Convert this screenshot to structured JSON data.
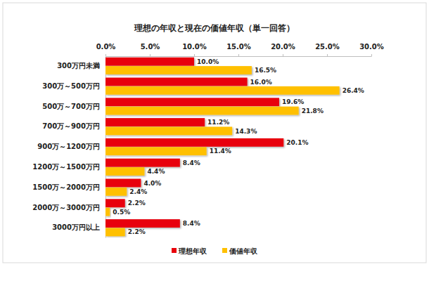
{
  "chart_data": {
    "type": "bar",
    "orientation": "horizontal",
    "title": "理想の年収と現在の価値年収（単一回答）",
    "categories": [
      "300万円未満",
      "300万～500万円",
      "500万～700万円",
      "700万～900万円",
      "900万～1200万円",
      "1200万～1500万円",
      "1500万～2000万円",
      "2000万～3000万円",
      "3000万円以上"
    ],
    "series": [
      {
        "name": "理想年収",
        "color": "#e8000b",
        "values": [
          10.0,
          16.0,
          19.6,
          11.2,
          20.1,
          8.4,
          4.0,
          2.2,
          8.4
        ],
        "value_labels": [
          "10.0%",
          "16.0%",
          "19.6%",
          "11.2%",
          "20.1%",
          "8.4%",
          "4.0%",
          "2.2%",
          "8.4%"
        ]
      },
      {
        "name": "価値年収",
        "color": "#ffc000",
        "values": [
          16.5,
          26.4,
          21.8,
          14.3,
          11.4,
          4.4,
          2.4,
          0.5,
          2.2
        ],
        "value_labels": [
          "16.5%",
          "26.4%",
          "21.8%",
          "14.3%",
          "11.4%",
          "4.4%",
          "2.4%",
          "0.5%",
          "2.2%"
        ]
      }
    ],
    "xlim": [
      0,
      30
    ],
    "xticks": [
      {
        "value": 0,
        "label": "0.0%"
      },
      {
        "value": 5,
        "label": "5.0%"
      },
      {
        "value": 10,
        "label": "10.0%"
      },
      {
        "value": 15,
        "label": "15.0%"
      },
      {
        "value": 20,
        "label": "20.0%"
      },
      {
        "value": 25,
        "label": "25.0%"
      },
      {
        "value": 30,
        "label": "30.0%"
      }
    ],
    "grid": false,
    "data_labels": true,
    "legend": "bottom"
  }
}
